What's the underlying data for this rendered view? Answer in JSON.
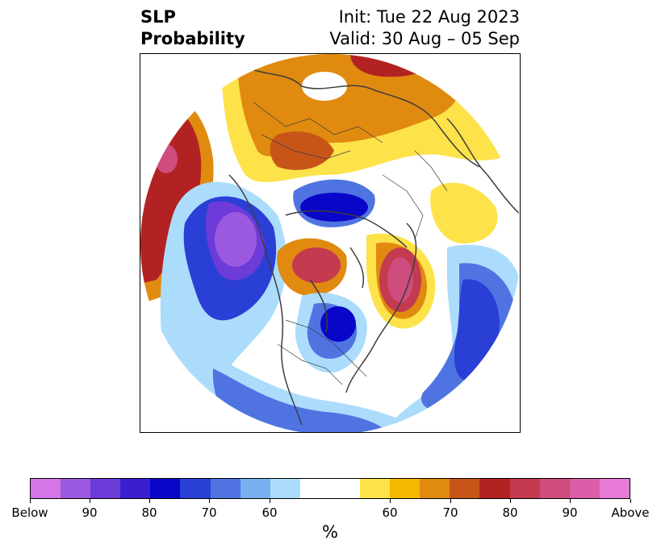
{
  "title": {
    "left_line1": "SLP",
    "left_line2": "Probability",
    "right_line1": "Init: Tue 22 Aug 2023",
    "right_line2": "Valid: 30 Aug – 05 Sep"
  },
  "colorbar": {
    "colors": [
      "#d475e8",
      "#9b59e0",
      "#6c3bd8",
      "#3a1fd0",
      "#0a06c8",
      "#2a3fd6",
      "#4f74e2",
      "#78b0f0",
      "#acdcfb",
      "#ffffff",
      "#ffffff",
      "#fee24a",
      "#f4b800",
      "#e08a10",
      "#c85518",
      "#b32222",
      "#c43a4e",
      "#ce4d7e",
      "#da5fa8",
      "#e87ad8"
    ],
    "ticks": [
      "Below",
      "90",
      "80",
      "70",
      "60",
      "60",
      "70",
      "80",
      "90",
      "Above"
    ],
    "unit": "%"
  },
  "colors": {
    "below_strong": "#9b59e0",
    "below": "#2a3fd6",
    "below_light": "#acdcfb",
    "above_light": "#fee24a",
    "above": "#e08a10",
    "above_strong": "#b32222",
    "coastline": "#3d3d3d"
  }
}
